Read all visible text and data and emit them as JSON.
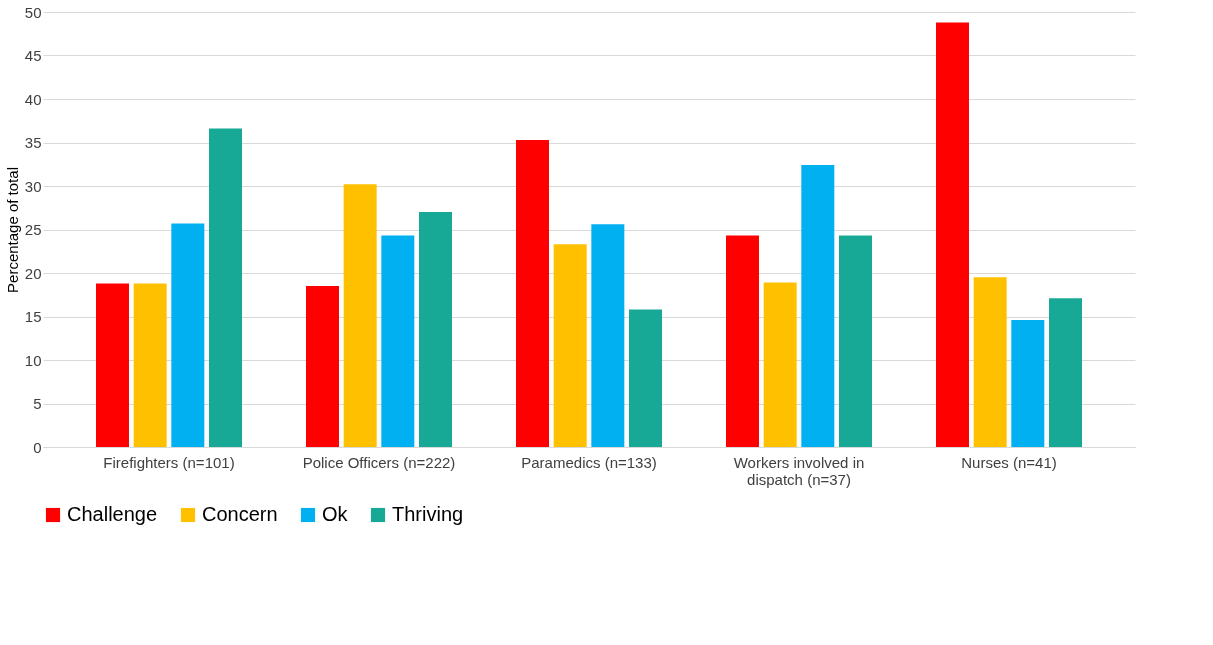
{
  "chart_data": {
    "type": "bar",
    "ylabel": "Percentage of total",
    "categories": [
      "Firefighters (n=101)",
      "Police Officers (n=222)",
      "Paramedics (n=133)",
      "Workers involved in dispatch (n=37)",
      "Nurses (n=41)"
    ],
    "series": [
      {
        "name": "Challenge",
        "color": "#ff0000",
        "values": [
          18.8,
          18.5,
          35.3,
          24.3,
          48.8
        ]
      },
      {
        "name": "Concern",
        "color": "#ffc000",
        "values": [
          18.8,
          30.2,
          23.3,
          18.9,
          19.5
        ]
      },
      {
        "name": "Ok",
        "color": "#00b0f0",
        "values": [
          25.7,
          24.3,
          25.6,
          32.4,
          14.6
        ]
      },
      {
        "name": "Thriving",
        "color": "#17a996",
        "values": [
          36.6,
          27.0,
          15.8,
          24.3,
          17.1
        ]
      }
    ],
    "ylim": [
      0,
      50
    ],
    "yticks": [
      0,
      5,
      10,
      15,
      20,
      25,
      30,
      35,
      40,
      45,
      50
    ],
    "grid": "y",
    "legend": "bottom"
  }
}
